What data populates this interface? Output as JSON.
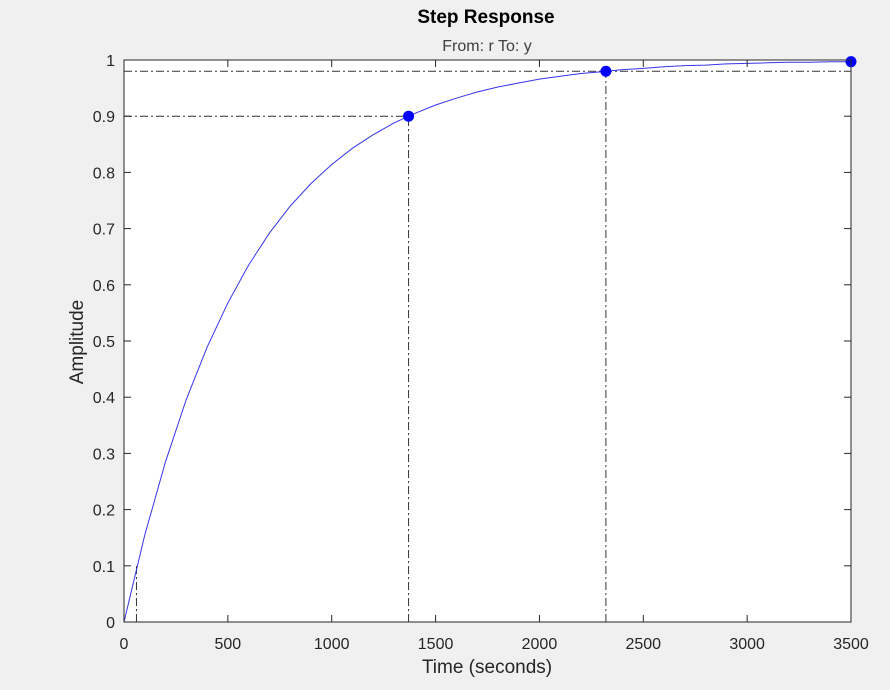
{
  "chart_data": {
    "type": "line",
    "title": "Step Response",
    "subtitle": "From: r  To: y",
    "xlabel": "Time (seconds)",
    "ylabel": "Amplitude",
    "xlim": [
      0,
      3500
    ],
    "ylim": [
      0,
      1
    ],
    "x_ticks": [
      0,
      500,
      1000,
      1500,
      2000,
      2500,
      3000,
      3500
    ],
    "y_ticks": [
      0,
      0.1,
      0.2,
      0.3,
      0.4,
      0.5,
      0.6,
      0.7,
      0.8,
      0.9,
      1
    ],
    "x_tick_labels": [
      "0",
      "500",
      "1000",
      "1500",
      "2000",
      "2500",
      "3000",
      "3500"
    ],
    "y_tick_labels": [
      "0",
      "0.1",
      "0.2",
      "0.3",
      "0.4",
      "0.5",
      "0.6",
      "0.7",
      "0.8",
      "0.9",
      "1"
    ],
    "grid": false,
    "series": [
      {
        "color": "#3535e8",
        "x": [
          0,
          100,
          200,
          300,
          400,
          500,
          600,
          700,
          800,
          900,
          1000,
          1100,
          1200,
          1300,
          1400,
          1500,
          1600,
          1700,
          1800,
          1900,
          2000,
          2100,
          2200,
          2300,
          2400,
          2500,
          2600,
          2700,
          2800,
          2900,
          3000,
          3100,
          3200,
          3300,
          3400,
          3500
        ],
        "y": [
          0,
          0.155,
          0.285,
          0.396,
          0.489,
          0.568,
          0.635,
          0.692,
          0.74,
          0.78,
          0.814,
          0.843,
          0.867,
          0.888,
          0.905,
          0.92,
          0.932,
          0.943,
          0.952,
          0.959,
          0.966,
          0.971,
          0.976,
          0.979,
          0.983,
          0.985,
          0.988,
          0.99,
          0.991,
          0.993,
          0.994,
          0.995,
          0.996,
          0.996,
          0.997,
          0.997
        ]
      }
    ],
    "characteristics": [
      {
        "name": "rise-time",
        "x_start": 60,
        "x_end": 1370,
        "y_low": 0.1,
        "y_high": 0.9
      },
      {
        "name": "settling-time",
        "x": 2320,
        "y": 0.98
      },
      {
        "name": "steady-state",
        "x": 3500,
        "y": 1.0
      }
    ],
    "markers": [
      {
        "x": 1370,
        "y": 0.9
      },
      {
        "x": 2320,
        "y": 0.98
      },
      {
        "x": 3500,
        "y": 0.997
      }
    ],
    "colors": {
      "line": "#3535e8",
      "marker": "#0000ff",
      "reference": "#333333",
      "axes": "#262626",
      "plot_bg": "#ffffff",
      "figure_bg": "#f0f0f0"
    }
  }
}
